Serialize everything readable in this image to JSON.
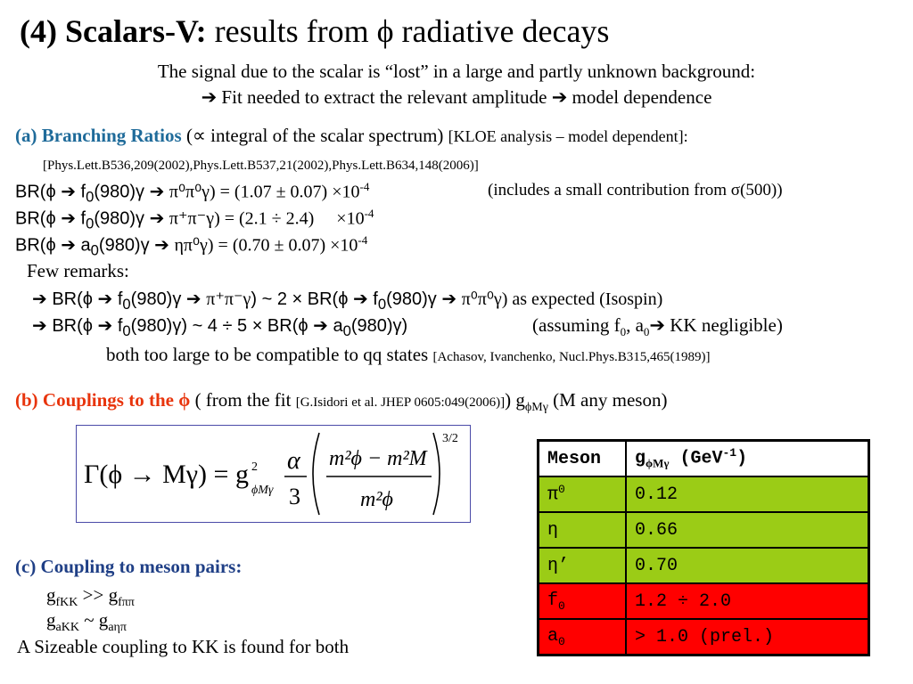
{
  "title": {
    "bold": "(4) Scalars-V:",
    "rest": " results from  ϕ radiative decays"
  },
  "intro": {
    "line1": "The signal due to the scalar is “lost” in a large and partly unknown background:",
    "line2": "➔ Fit needed to extract the relevant amplitude ➔ model dependence"
  },
  "section_a": {
    "label": "(a) Branching Ratios",
    "text": " (∝ integral of the scalar spectrum) ",
    "note": "[KLOE analysis – model dependent]:",
    "refs": "[Phys.Lett.B536,209(2002),Phys.Lett.B537,21(2002),Phys.Lett.B634,148(2006)]"
  },
  "br_lines": [
    {
      "lhs": "BR(ϕ ➔ f",
      "sub": "0",
      "mid": "(980)γ ➔ ",
      "final": "π⁰π⁰γ",
      "rhs": ") = (1.07 ± 0.07) ×10",
      "exp": "-4",
      "note": "(includes a small contribution from σ(500))"
    },
    {
      "lhs": "BR(ϕ ➔ f",
      "sub": "0",
      "mid": "(980)γ ➔ ",
      "final": "π⁺π⁻γ",
      "rhs": ") = (2.1 ÷ 2.4)     ×10",
      "exp": "-4",
      "note": ""
    },
    {
      "lhs": "BR(ϕ ➔ a",
      "sub": "0",
      "mid": "(980)γ ➔ ",
      "final": "ηπ⁰γ",
      "rhs": ") = (0.70 ± 0.07) ×10",
      "exp": "-4",
      "note": ""
    }
  ],
  "remarks": {
    "heading": "Few remarks:",
    "r1_a": "➔ BR(ϕ ➔ f",
    "r1_b": "(980)γ ➔ ",
    "r1_c": "π⁺π⁻γ",
    "r1_d": ") ~ 2 × BR(ϕ ➔ f",
    "r1_e": "(980)γ ➔ ",
    "r1_f": "π⁰π⁰γ",
    "r1_g": ") as expected (Isospin)",
    "r2_a": "➔ BR(ϕ ➔ f",
    "r2_b": "(980)γ) ~ 4 ÷ 5 × BR(ϕ ➔ a",
    "r2_c": "(980)γ)",
    "r2_d": "(assuming f",
    "r2_e": ", a",
    "r2_f": "➔ KK negligible)",
    "r3": "both too large to be compatible to qq states ",
    "r3_ref": "[Achasov, Ivanchenko, Nucl.Phys.B315,465(1989)]",
    "sub0": "0"
  },
  "section_b": {
    "label": "(b) Couplings to the ϕ",
    "text1": " ( from the fit ",
    "ref": "[G.Isidori et al. JHEP 0605:049(2006)]",
    "text2": ") g",
    "gsub": "ϕMγ",
    "text3": "  (M any meson)"
  },
  "formula": {
    "lhs": "Γ(ϕ → Mγ) = g",
    "coupling_sub": "ϕMγ",
    "sq": "2",
    "alpha": "α",
    "three": "3",
    "num": "m²ϕ − m²M",
    "den": "m²ϕ",
    "power": "3/2"
  },
  "section_c": {
    "label": "(c) Coupling to meson pairs:",
    "l1_g": "g",
    "l1_s1": "fKK",
    "l1_mid": " >> g",
    "l1_s2": "fππ",
    "l2_g": "g",
    "l2_s1": "aKK",
    "l2_mid": " ~ g",
    "l2_s2": "aηπ",
    "conclusion": "A Sizeable coupling to KK is found for both"
  },
  "table": {
    "header_meson": "Meson",
    "header_coupling": "g",
    "header_coupling_sub": "ϕMγ",
    "header_unit": " (GeV",
    "header_unit_exp": "-1",
    "header_unit_close": ")",
    "rows": [
      {
        "meson": "π",
        "meson_mark": "0",
        "value": "0.12",
        "color": "#9bcc16"
      },
      {
        "meson": "η",
        "meson_mark": "",
        "value": "0.66",
        "color": "#9bcc16"
      },
      {
        "meson": "η’",
        "meson_mark": "",
        "value": "0.70",
        "color": "#9bcc16"
      },
      {
        "meson": "f",
        "meson_mark": "0",
        "value": "1.2 ÷ 2.0",
        "color": "#ff0000"
      },
      {
        "meson": "a",
        "meson_mark": "0",
        "value": "> 1.0 (prel.)",
        "color": "#ff0000"
      }
    ]
  }
}
